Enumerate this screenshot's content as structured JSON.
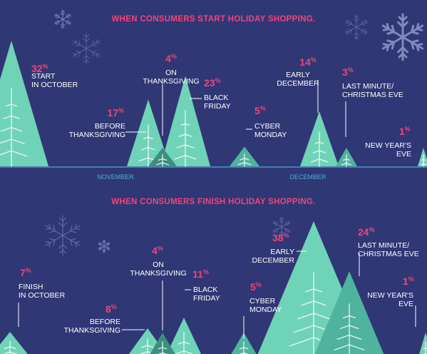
{
  "colors": {
    "background": "#2f3775",
    "title": "#f0457c",
    "percent": "#f0457c",
    "tree_light": "#6fd3b8",
    "tree_mid": "#4fb39e",
    "tree_dark": "#3b8f80",
    "axis": "#56a9d8",
    "axis_label": "#56a9d8",
    "snowflake": "#8a92c4",
    "label": "#ffffff"
  },
  "chart_data": [
    {
      "type": "bar",
      "title": "WHEN CONSUMERS START HOLIDAY SHOPPING.",
      "unit": "%",
      "x_tick_labels": [
        "NOVEMBER",
        "DECEMBER"
      ],
      "categories": [
        "START IN OCTOBER",
        "BEFORE THANKSGIVING",
        "ON THANKSGIVING",
        "BLACK FRIDAY",
        "CYBER MONDAY",
        "EARLY DECEMBER",
        "LAST MINUTE/ CHRISTMAS EVE",
        "NEW YEAR'S EVE"
      ],
      "values": [
        32,
        17,
        4,
        23,
        5,
        14,
        3,
        1
      ],
      "labels": [
        [
          "START",
          "IN OCTOBER"
        ],
        [
          "BEFORE",
          "THANKSGIVING"
        ],
        [
          "ON",
          "THANKSGIVING"
        ],
        [
          "BLACK",
          "FRIDAY"
        ],
        [
          "CYBER",
          "MONDAY"
        ],
        [
          "EARLY",
          "DECEMBER"
        ],
        [
          "LAST MINUTE/",
          "CHRISTMAS EVE"
        ],
        [
          "NEW YEAR'S",
          "EVE"
        ]
      ],
      "value_labels": [
        "32",
        "17",
        "4",
        "23",
        "5",
        "14",
        "3",
        "1"
      ]
    },
    {
      "type": "bar",
      "title": "WHEN CONSUMERS FINISH HOLIDAY SHOPPING.",
      "unit": "%",
      "categories": [
        "FINISH IN OCTOBER",
        "BEFORE THANKSGIVING",
        "ON THANKSGIVING",
        "BLACK FRIDAY",
        "CYBER MONDAY",
        "EARLY DECEMBER",
        "LAST MINUTE/ CHRISTMAS EVE",
        "NEW YEAR'S EVE"
      ],
      "values": [
        7,
        8,
        4,
        11,
        5,
        38,
        24,
        1
      ],
      "labels": [
        [
          "FINISH",
          "IN OCTOBER"
        ],
        [
          "BEFORE",
          "THANKSGIVING"
        ],
        [
          "ON",
          "THANKSGIVING"
        ],
        [
          "BLACK",
          "FRIDAY"
        ],
        [
          "CYBER",
          "MONDAY"
        ],
        [
          "EARLY",
          "DECEMBER"
        ],
        [
          "LAST MINUTE/",
          "CHRISTMAS EVE"
        ],
        [
          "NEW YEAR'S",
          "EVE"
        ]
      ],
      "value_labels": [
        "7",
        "8",
        "4",
        "11",
        "5",
        "38",
        "24",
        "1"
      ]
    }
  ]
}
